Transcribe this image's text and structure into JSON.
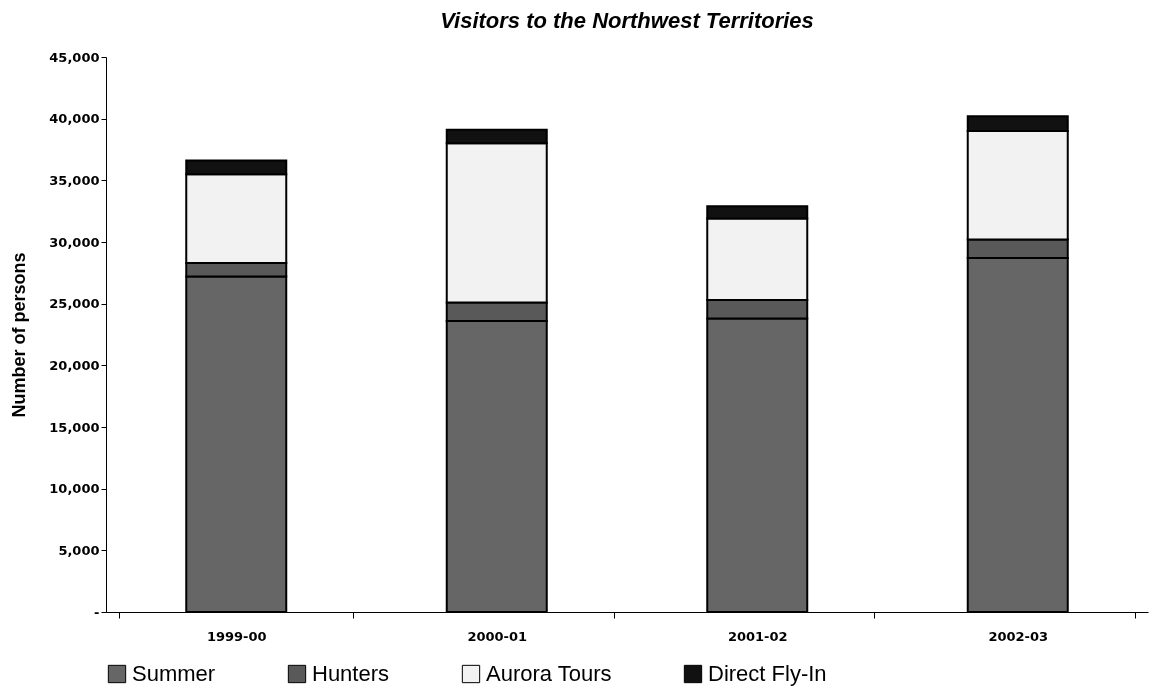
{
  "chart_data": {
    "type": "bar",
    "title": "Visitors to the Northwest Territories",
    "ylabel": "Number of persons",
    "stacked": true,
    "categories": [
      "1999-00",
      "2000-01",
      "2001-02",
      "2002-03"
    ],
    "series": [
      {
        "name": "Summer",
        "color": "#666666",
        "values": [
          27200,
          23600,
          23800,
          28700
        ]
      },
      {
        "name": "Hunters",
        "color": "#595959",
        "values": [
          1100,
          1500,
          1500,
          1500
        ]
      },
      {
        "name": "Aurora Tours",
        "color": "#f2f2f2",
        "values": [
          7200,
          12900,
          6600,
          8800
        ]
      },
      {
        "name": "Direct Fly-In",
        "color": "#111111",
        "values": [
          1100,
          1100,
          1000,
          1200
        ]
      }
    ],
    "ylim": [
      0,
      45000
    ],
    "yticks": [
      {
        "value": 0,
        "label": "-"
      },
      {
        "value": 5000,
        "label": "5,000"
      },
      {
        "value": 10000,
        "label": "10,000"
      },
      {
        "value": 15000,
        "label": "15,000"
      },
      {
        "value": 20000,
        "label": "20,000"
      },
      {
        "value": 25000,
        "label": "25,000"
      },
      {
        "value": 30000,
        "label": "30,000"
      },
      {
        "value": 35000,
        "label": "35,000"
      },
      {
        "value": 40000,
        "label": "40,000"
      },
      {
        "value": 45000,
        "label": "45,000"
      }
    ],
    "grid": false,
    "legend": "bottom"
  }
}
